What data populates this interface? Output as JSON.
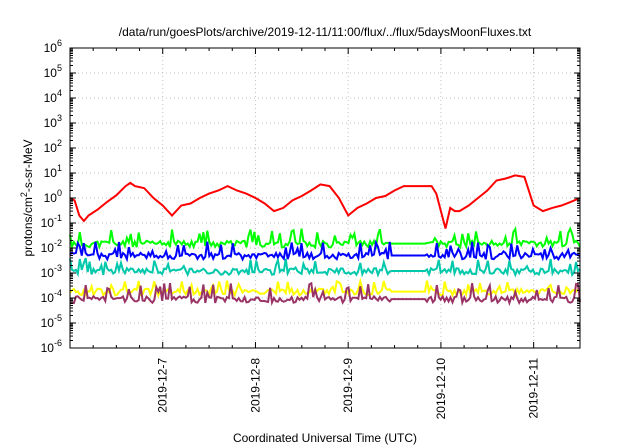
{
  "chart_data": {
    "type": "line",
    "title": "/data/run/goesPlots/archive/2019-12-11/11:00/flux/../flux/5daysMoonFluxes.txt",
    "xlabel": "Coordinated Universal Time (UTC)",
    "ylabel": {
      "base": "protons/cm",
      "sup": "2",
      "rest": "-s-sr-MeV"
    },
    "yscale": "log",
    "ylim_exp": [
      -6,
      6
    ],
    "yticks": [
      {
        "base": "10",
        "exp": "-6"
      },
      {
        "base": "10",
        "exp": "-5"
      },
      {
        "base": "10",
        "exp": "-4"
      },
      {
        "base": "10",
        "exp": "-3"
      },
      {
        "base": "10",
        "exp": "-2"
      },
      {
        "base": "10",
        "exp": "-1"
      },
      {
        "base": "10",
        "exp": "0"
      },
      {
        "base": "10",
        "exp": "1"
      },
      {
        "base": "10",
        "exp": "2"
      },
      {
        "base": "10",
        "exp": "3"
      },
      {
        "base": "10",
        "exp": "4"
      },
      {
        "base": "10",
        "exp": "5"
      },
      {
        "base": "10",
        "exp": "6"
      }
    ],
    "xlim_days": [
      6.0,
      11.5
    ],
    "xticks": [
      {
        "label": "2019-12-7",
        "day": 7
      },
      {
        "label": "2019-12-8",
        "day": 8
      },
      {
        "label": "2019-12-9",
        "day": 9
      },
      {
        "label": "2019-12-10",
        "day": 10
      },
      {
        "label": "2019-12-11",
        "day": 11
      }
    ],
    "grid": true,
    "series": [
      {
        "color": "#ff0000",
        "x": [
          6.0,
          6.05,
          6.1,
          6.15,
          6.2,
          6.3,
          6.4,
          6.5,
          6.6,
          6.65,
          6.7,
          6.8,
          6.9,
          7.0,
          7.1,
          7.2,
          7.3,
          7.4,
          7.5,
          7.6,
          7.7,
          7.8,
          7.9,
          8.0,
          8.1,
          8.2,
          8.3,
          8.4,
          8.5,
          8.6,
          8.7,
          8.8,
          8.9,
          9.0,
          9.1,
          9.2,
          9.3,
          9.4,
          9.5,
          9.6,
          9.7,
          9.8,
          9.9,
          9.95,
          10.0,
          10.05,
          10.1,
          10.15,
          10.2,
          10.3,
          10.4,
          10.5,
          10.6,
          10.7,
          10.8,
          10.9,
          11.0,
          11.1,
          11.2,
          11.3,
          11.4,
          11.5
        ],
        "y": [
          1.0,
          0.8,
          0.2,
          0.12,
          0.2,
          0.35,
          0.7,
          1.3,
          3.0,
          4.0,
          3.0,
          2.5,
          1.0,
          0.5,
          0.2,
          0.5,
          0.6,
          1.0,
          1.5,
          2.0,
          3.0,
          2.0,
          1.5,
          1.0,
          0.6,
          0.3,
          0.4,
          0.8,
          1.2,
          2.0,
          3.5,
          3.0,
          1.0,
          0.2,
          0.4,
          0.6,
          1.0,
          1.2,
          2.0,
          3.0,
          3.0,
          3.0,
          3.0,
          1.5,
          0.3,
          0.06,
          0.4,
          0.3,
          0.3,
          0.5,
          1.0,
          2.0,
          5.0,
          6.0,
          8.0,
          7.0,
          0.5,
          0.3,
          0.4,
          0.5,
          0.7,
          1.0
        ]
      },
      {
        "color": "#00ff00",
        "base": 0.015,
        "spike": 0.06,
        "seed": 11
      },
      {
        "color": "#00c8aa",
        "base": 0.0012,
        "spike": 0.004,
        "seed": 23
      },
      {
        "color": "#0000ff",
        "base": 0.005,
        "spike": 0.018,
        "seed": 37
      },
      {
        "color": "#ffff00",
        "base": 0.00018,
        "spike": 0.0005,
        "seed": 53
      },
      {
        "color": "#993366",
        "base": 9e-05,
        "spike": 0.0004,
        "seed": 71
      }
    ]
  }
}
